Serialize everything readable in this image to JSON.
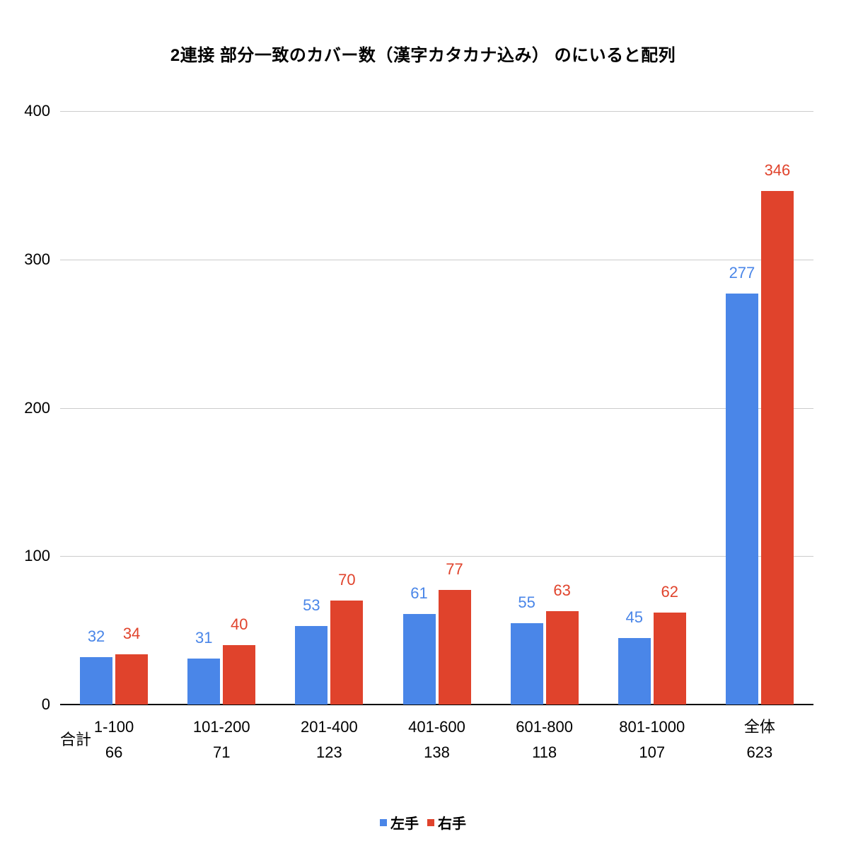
{
  "chart_data": {
    "type": "bar",
    "title": "2連接 部分一致のカバー数（漢字カタカナ込み） のにいると配列",
    "categories": [
      "1-100",
      "101-200",
      "201-400",
      "401-600",
      "601-800",
      "801-1000",
      "全体"
    ],
    "series": [
      {
        "name": "左手",
        "color": "#4A86E8",
        "values": [
          32,
          31,
          53,
          61,
          55,
          45,
          277
        ]
      },
      {
        "name": "右手",
        "color": "#E0432C",
        "values": [
          34,
          40,
          70,
          77,
          63,
          62,
          346
        ]
      }
    ],
    "totals_row_label": "合計",
    "totals": [
      66,
      71,
      123,
      138,
      118,
      107,
      623
    ],
    "ylim": [
      0,
      400
    ],
    "yticks": [
      0,
      100,
      200,
      300,
      400
    ],
    "grid": true,
    "legend_position": "bottom",
    "background_color": "#ffffff",
    "gridline_color": "#cccccc",
    "axis_color": "#000000"
  }
}
